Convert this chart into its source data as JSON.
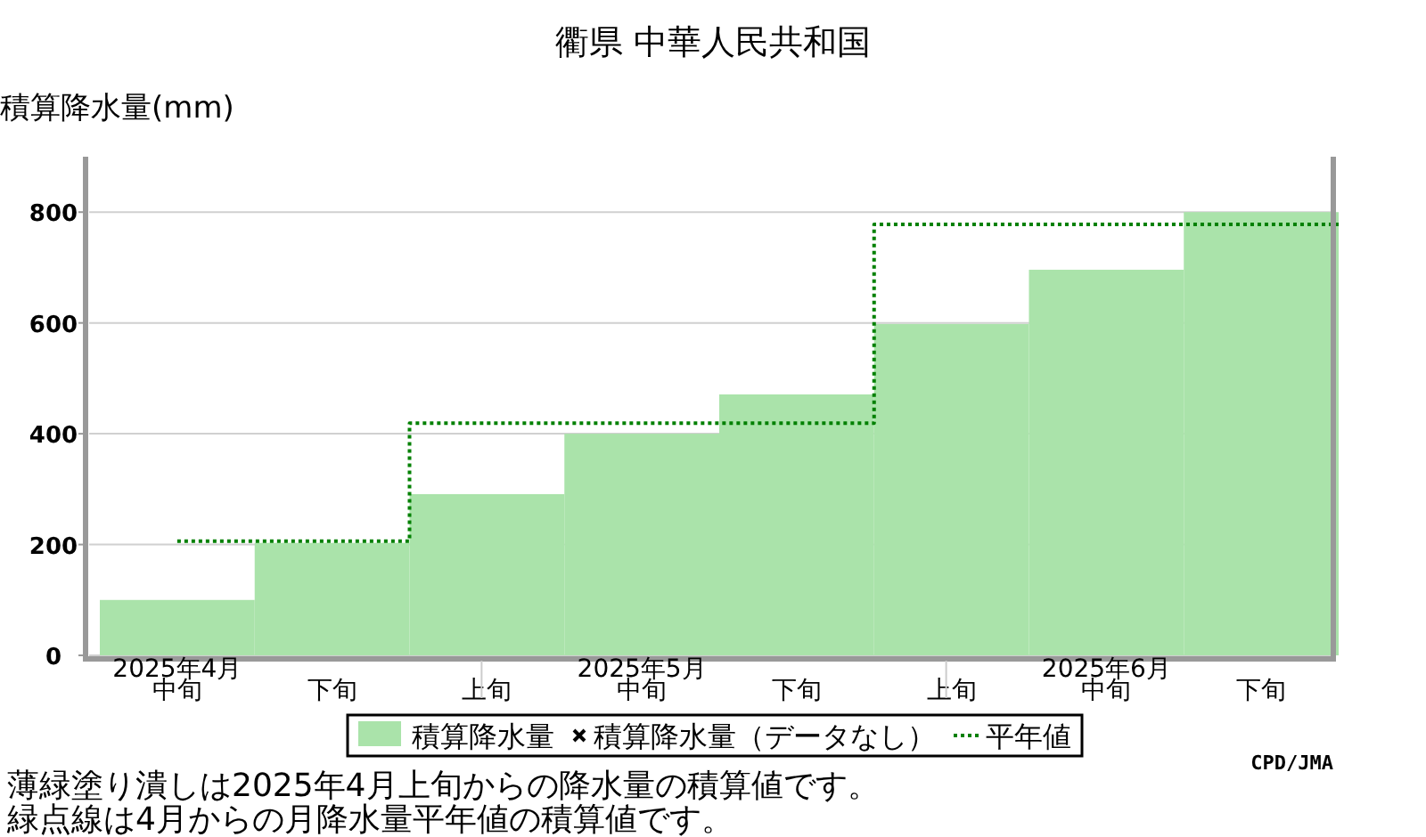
{
  "chart_data": {
    "type": "bar",
    "title": "衢県 中華人民共和国",
    "ylabel": "積算降水量(mm)",
    "categories": [
      "2025年4月中旬",
      "下旬",
      "上旬",
      "2025年5月中旬",
      "下旬",
      "上旬",
      "2025年6月中旬",
      "下旬"
    ],
    "series": [
      {
        "name": "積算降水量",
        "color": "#aae3aa",
        "values": [
          100,
          203,
          291,
          400,
          471,
          598,
          696,
          800
        ]
      },
      {
        "name": "積算降水量（データなし）",
        "type": "scatter",
        "marker": "cross",
        "color": "#000000",
        "values": [
          null,
          null,
          null,
          null,
          null,
          null,
          null,
          null
        ]
      },
      {
        "name": "平年値",
        "type": "step",
        "line_style": "dotted",
        "color": "#008000",
        "values": [
          206,
          206,
          419,
          419,
          419,
          778,
          778,
          778
        ]
      }
    ],
    "ylim": [
      0,
      900
    ],
    "yticks": [
      0,
      200,
      400,
      600,
      800
    ],
    "grid": "y",
    "legend": "bottom",
    "annotations": [
      "CPD/JMA",
      "薄緑塗り潰しは2025年4月上旬からの降水量の積算値です。",
      "緑点線は4月からの月降水量平年値の積算値です。"
    ]
  }
}
